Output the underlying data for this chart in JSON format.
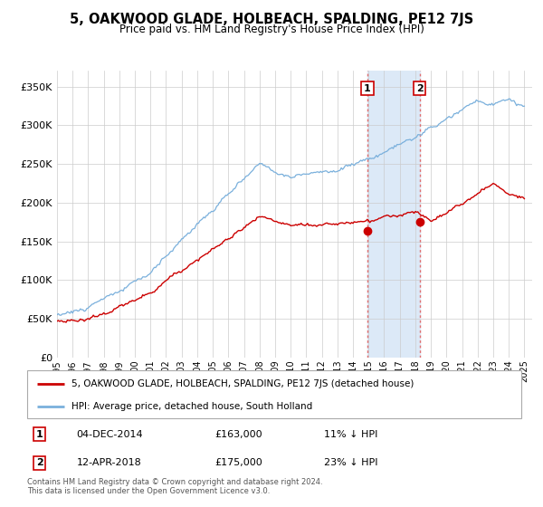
{
  "title": "5, OAKWOOD GLADE, HOLBEACH, SPALDING, PE12 7JS",
  "subtitle": "Price paid vs. HM Land Registry's House Price Index (HPI)",
  "hpi_color": "#7ab0dc",
  "price_color": "#cc0000",
  "marker_color": "#cc0000",
  "background_color": "#ffffff",
  "grid_color": "#cccccc",
  "highlight_color": "#dce9f7",
  "ylim": [
    0,
    370000
  ],
  "yticks": [
    0,
    50000,
    100000,
    150000,
    200000,
    250000,
    300000,
    350000
  ],
  "sale1": {
    "date_num": 2014.92,
    "price": 163000,
    "label": "1",
    "date_str": "04-DEC-2014",
    "pct": "11% ↓ HPI"
  },
  "sale2": {
    "date_num": 2018.28,
    "price": 175000,
    "label": "2",
    "date_str": "12-APR-2018",
    "pct": "23% ↓ HPI"
  },
  "legend_property": "5, OAKWOOD GLADE, HOLBEACH, SPALDING, PE12 7JS (detached house)",
  "legend_hpi": "HPI: Average price, detached house, South Holland",
  "footer": "Contains HM Land Registry data © Crown copyright and database right 2024.\nThis data is licensed under the Open Government Licence v3.0.",
  "xmin": 1995.0,
  "xmax": 2025.5,
  "hpi_seed": 10,
  "price_seed": 20
}
